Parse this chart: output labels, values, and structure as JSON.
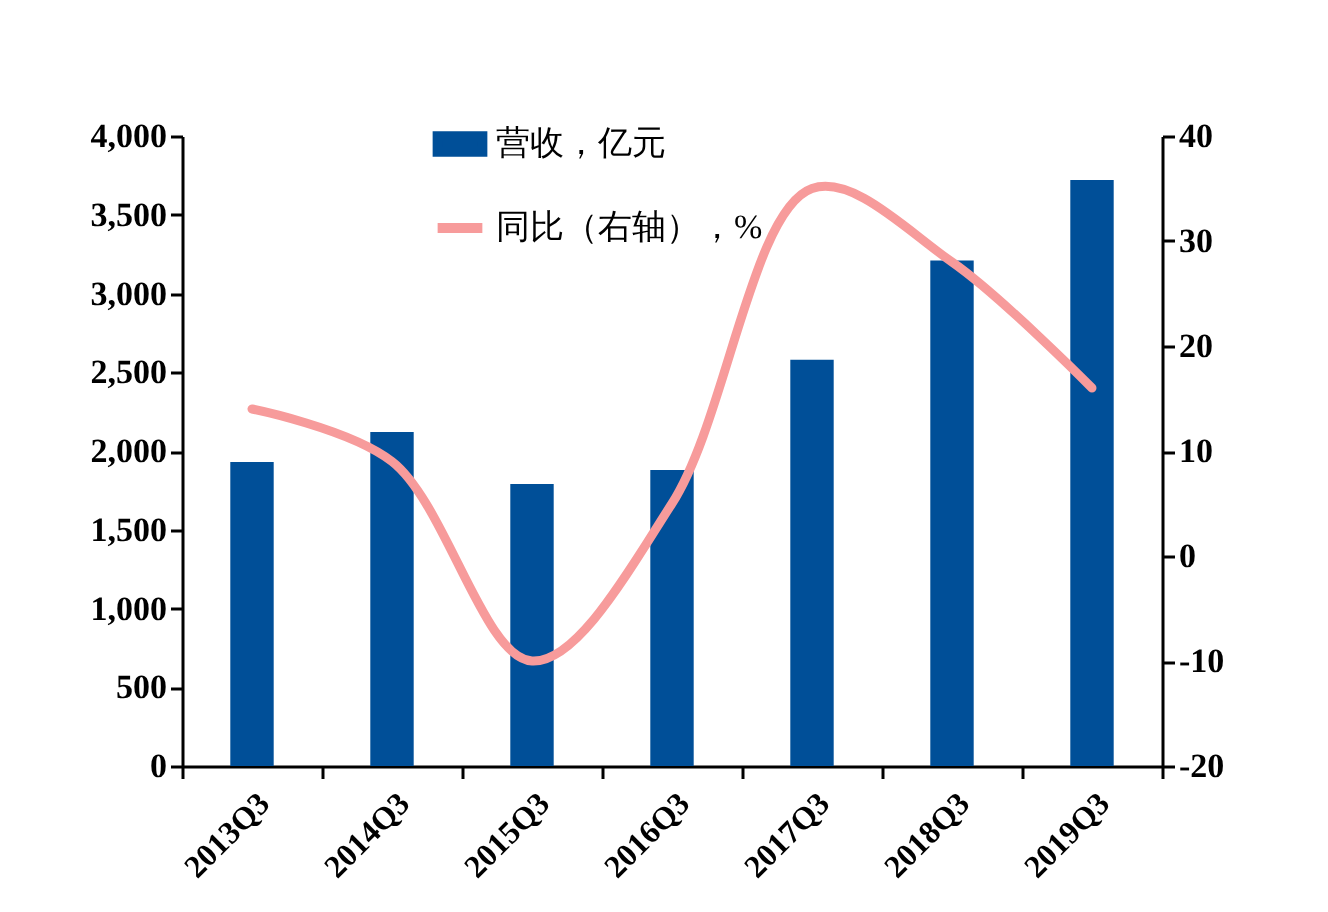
{
  "chart_data": {
    "type": "bar",
    "categories": [
      "2013Q3",
      "2014Q3",
      "2015Q3",
      "2016Q3",
      "2017Q3",
      "2018Q3",
      "2019Q3"
    ],
    "series": [
      {
        "name": "营收，亿元",
        "color": "#004f98",
        "values": [
          1930,
          2120,
          1790,
          1880,
          2580,
          3210,
          3720
        ]
      },
      {
        "name": "同比（右轴），%",
        "type": "line",
        "axis": "y2",
        "color": "#f79b9b",
        "values": [
          14,
          9,
          -10,
          5,
          35,
          28,
          16
        ]
      }
    ],
    "ylim": [
      0,
      4000
    ],
    "yticks": [
      0,
      500,
      {
        "value": 1000,
        "label": "1,000"
      },
      {
        "value": 1500,
        "label": "1,500"
      },
      {
        "value": 2000,
        "label": "2,000"
      },
      {
        "value": 2500,
        "label": "2,500"
      },
      {
        "value": 3000,
        "label": "3,000"
      },
      {
        "value": 3500,
        "label": "3,500"
      },
      {
        "value": 4000,
        "label": "4,000"
      }
    ],
    "y2lim": [
      -20,
      40
    ],
    "y2ticks": [
      -20,
      -10,
      0,
      10,
      20,
      30,
      40
    ],
    "legend": "top",
    "grid": false,
    "marker": "none",
    "line_style": "solid"
  }
}
